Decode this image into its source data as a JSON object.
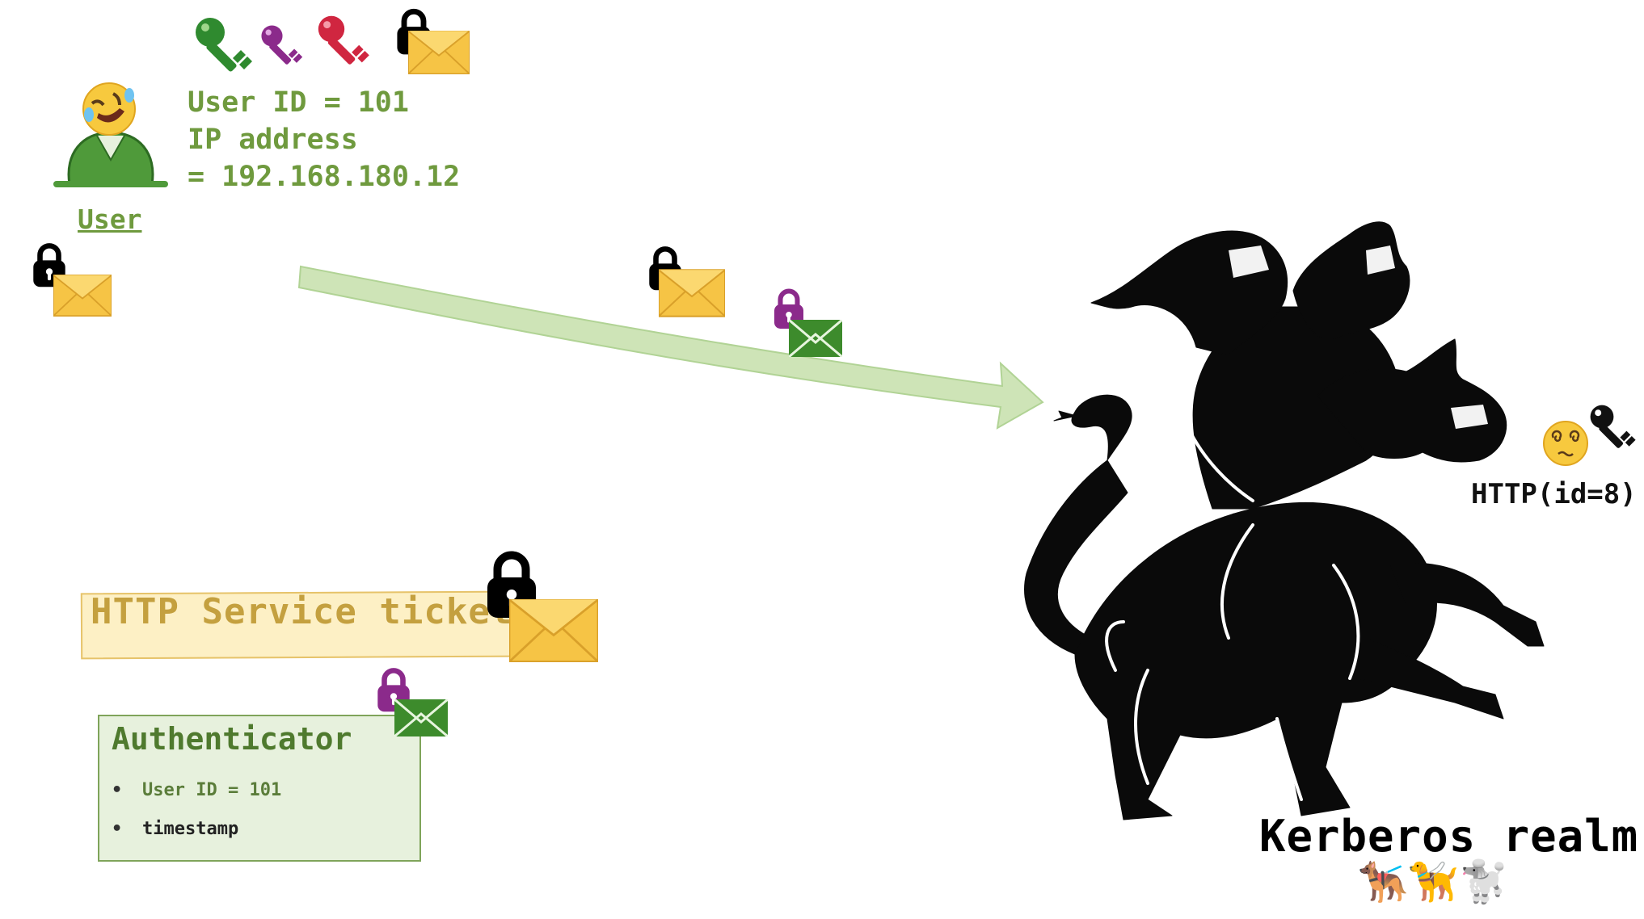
{
  "user": {
    "label": "User",
    "info_lines": [
      "User ID = 101",
      "IP address",
      "= 192.168.180.12"
    ]
  },
  "ticket": {
    "label": "HTTP Service ticket"
  },
  "authenticator": {
    "title": "Authenticator",
    "items": [
      "User ID = 101",
      "timestamp"
    ]
  },
  "kdc": {
    "service_label": "HTTP(id=8)",
    "realm_label": "Kerberos realm",
    "realm_emojis": "🐕‍🦺🦮🐩"
  },
  "icons": {
    "green_key": "green-key-icon",
    "purple_key": "purple-key-icon",
    "red_key": "red-key-icon",
    "black_key": "black-key-icon",
    "lock_black": "black-lock-icon",
    "lock_purple": "purple-lock-icon",
    "envelope_yellow": "yellow-envelope-icon",
    "envelope_green": "green-envelope-icon",
    "laughing_face": "rolling-on-floor-laughing-icon",
    "dizzy_face": "dizzy-face-icon",
    "cerberus": "cerberus-icon"
  },
  "colors": {
    "user_text": "#6f9a3e",
    "ticket_text": "#c4a03f",
    "ticket_fill": "#fdf0c5",
    "auth_fill": "#e7f1dd",
    "arrow": "#c9e2b0",
    "envelope_yellow": "#f2c94c",
    "envelope_green": "#3d8b2c",
    "lock_purple": "#8b2a8b"
  }
}
